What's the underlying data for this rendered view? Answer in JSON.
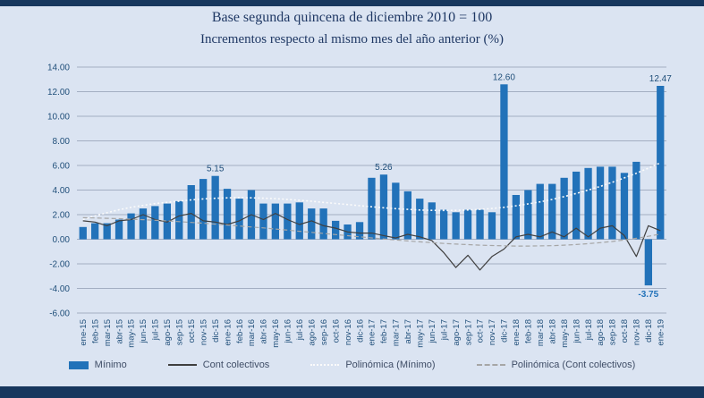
{
  "page": {
    "background": "#dbe4f2",
    "band_color": "#17375e",
    "accent_color": "#2272b9",
    "text_color": "#1f4e79"
  },
  "titles": {
    "line1": "Base segunda quincena de diciembre 2010 = 100",
    "line2": "Incrementos respecto al mismo mes del año anterior (%)"
  },
  "chart_data": {
    "type": "bar",
    "title": "Base segunda quincena de diciembre 2010 = 100",
    "subtitle": "Incrementos respecto al mismo mes del año anterior (%)",
    "ylim": [
      -6,
      14
    ],
    "ytick_step": 2,
    "grid": true,
    "legend_position": "bottom",
    "categories": [
      "ene-15",
      "feb-15",
      "mar-15",
      "abr-15",
      "may-15",
      "jun-15",
      "jul-15",
      "ago-15",
      "sep-15",
      "oct-15",
      "nov-15",
      "dic-15",
      "ene-16",
      "feb-16",
      "mar-16",
      "abr-16",
      "may-16",
      "jun-16",
      "jul-16",
      "ago-16",
      "sep-16",
      "oct-16",
      "nov-16",
      "dic-16",
      "ene-17",
      "feb-17",
      "mar-17",
      "abr-17",
      "may-17",
      "jun-17",
      "jul-17",
      "ago-17",
      "sep-17",
      "oct-17",
      "nov-17",
      "dic-17",
      "ene-18",
      "feb-18",
      "mar-18",
      "abr-18",
      "may-18",
      "jun-18",
      "jul-18",
      "ago-18",
      "sep-18",
      "oct-18",
      "nov-18",
      "dic-18",
      "ene-19"
    ],
    "series": [
      {
        "name": "Mínimo",
        "id": "minimo-bars",
        "type": "bar",
        "color": "#2272b9",
        "values": [
          1.0,
          1.3,
          1.3,
          1.6,
          2.1,
          2.5,
          2.7,
          2.9,
          3.1,
          4.4,
          4.9,
          5.15,
          4.1,
          3.3,
          4.0,
          2.9,
          2.9,
          2.9,
          3.0,
          2.5,
          2.5,
          1.5,
          1.2,
          1.4,
          5.0,
          5.26,
          4.6,
          3.9,
          3.3,
          3.0,
          2.4,
          2.2,
          2.4,
          2.4,
          2.2,
          12.6,
          3.6,
          4.0,
          4.5,
          4.5,
          5.0,
          5.5,
          5.8,
          5.9,
          5.9,
          5.4,
          6.3,
          -3.75,
          12.47
        ]
      },
      {
        "name": "Cont colectivos",
        "id": "cont-colectivos-line",
        "type": "line",
        "color": "#3f3f3f",
        "width": 1.2,
        "values": [
          1.5,
          1.4,
          1.1,
          1.5,
          1.6,
          2.0,
          1.6,
          1.4,
          1.9,
          2.1,
          1.5,
          1.4,
          1.2,
          1.5,
          2.0,
          1.6,
          2.1,
          1.6,
          1.2,
          1.5,
          1.1,
          0.9,
          0.6,
          0.5,
          0.5,
          0.3,
          0.1,
          0.4,
          0.2,
          -0.1,
          -1.1,
          -2.3,
          -1.3,
          -2.5,
          -1.4,
          -0.8,
          0.2,
          0.4,
          0.2,
          0.6,
          0.2,
          0.9,
          0.2,
          0.9,
          1.1,
          0.3,
          -1.4,
          1.1,
          0.7
        ]
      },
      {
        "name": "Polinómica (Mínimo)",
        "id": "polinomica-minimo-trendline",
        "type": "line",
        "color": "#fbfbfb",
        "width": 1.6,
        "dash": "2 2.5",
        "values": [
          1.6,
          1.9,
          2.15,
          2.4,
          2.6,
          2.75,
          2.9,
          3.0,
          3.1,
          3.2,
          3.28,
          3.33,
          3.37,
          3.38,
          3.37,
          3.34,
          3.3,
          3.24,
          3.17,
          3.09,
          3.0,
          2.91,
          2.82,
          2.73,
          2.64,
          2.56,
          2.49,
          2.43,
          2.38,
          2.35,
          2.34,
          2.35,
          2.38,
          2.43,
          2.5,
          2.6,
          2.72,
          2.87,
          3.04,
          3.24,
          3.47,
          3.72,
          4.0,
          4.3,
          4.63,
          4.99,
          5.37,
          5.78,
          6.22
        ]
      },
      {
        "name": "Polinómica (Cont colectivos)",
        "id": "polinomica-cont-colectivos-trendline",
        "type": "line",
        "color": "#a6a6a6",
        "width": 1.2,
        "dash": "5 3",
        "values": [
          1.75,
          1.73,
          1.7,
          1.67,
          1.63,
          1.59,
          1.54,
          1.49,
          1.43,
          1.37,
          1.3,
          1.23,
          1.16,
          1.08,
          1.0,
          0.92,
          0.83,
          0.74,
          0.65,
          0.56,
          0.47,
          0.38,
          0.29,
          0.2,
          0.11,
          0.02,
          -0.06,
          -0.14,
          -0.21,
          -0.28,
          -0.34,
          -0.39,
          -0.44,
          -0.48,
          -0.51,
          -0.53,
          -0.55,
          -0.55,
          -0.54,
          -0.52,
          -0.48,
          -0.43,
          -0.36,
          -0.28,
          -0.18,
          -0.06,
          0.08,
          0.24,
          0.42
        ]
      }
    ],
    "annotations": [
      {
        "category": "dic-15",
        "text": "5.15",
        "position": "above",
        "emphasis": false
      },
      {
        "category": "feb-17",
        "text": "5.26",
        "position": "above",
        "emphasis": false
      },
      {
        "category": "dic-17",
        "text": "12.60",
        "position": "above",
        "emphasis": false
      },
      {
        "category": "ene-19",
        "text": "12.47",
        "position": "above",
        "emphasis": false
      },
      {
        "category": "dic-18",
        "text": "-3.75",
        "position": "below",
        "emphasis": true
      }
    ]
  },
  "legend": {
    "items": [
      {
        "label": "Mínimo"
      },
      {
        "label": "Cont colectivos"
      },
      {
        "label": "Polinómica (Mínimo)"
      },
      {
        "label": "Polinómica (Cont colectivos)"
      }
    ]
  }
}
